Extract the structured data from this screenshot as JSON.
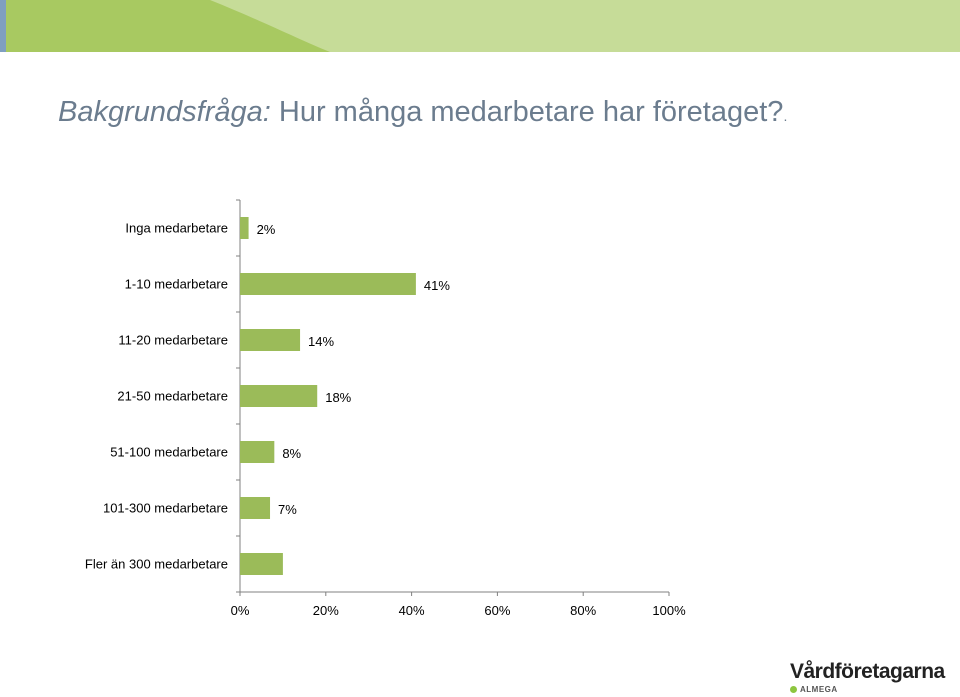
{
  "slide": {
    "title_prefix": "Bakgrundsfråga:",
    "title_rest": " Hur många medarbetare har företaget?",
    "title_tail": "."
  },
  "colors": {
    "band": "#a8c961",
    "band_light": "#c2dc86",
    "bar": "#9bbb59",
    "axis": "#808080",
    "title": "#6b7c8e",
    "logo_dot": "#8dc63f"
  },
  "logo": {
    "name": "Vårdföretagarna",
    "sub": "ALMEGA"
  },
  "chart_data": {
    "type": "bar",
    "orientation": "horizontal",
    "categories": [
      "Inga medarbetare",
      "1-10 medarbetare",
      "11-20 medarbetare",
      "21-50 medarbetare",
      "51-100 medarbetare",
      "101-300 medarbetare",
      "Fler än 300 medarbetare"
    ],
    "values": [
      2,
      41,
      14,
      18,
      8,
      7,
      10
    ],
    "data_labels": [
      "2%",
      "41%",
      "14%",
      "18%",
      "8%",
      "7%",
      ""
    ],
    "xlim": [
      0,
      100
    ],
    "xticks": [
      0,
      20,
      40,
      60,
      80,
      100
    ],
    "xtick_labels": [
      "0%",
      "20%",
      "40%",
      "60%",
      "80%",
      "100%"
    ],
    "grid": false,
    "legend": "none"
  }
}
